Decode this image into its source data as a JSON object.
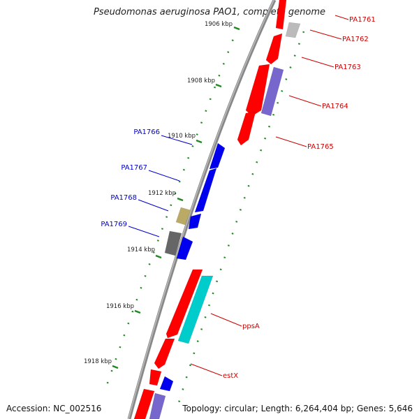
{
  "title": "Pseudomonas aeruginosa PAO1, complete genome",
  "footer": {
    "accession": "Accession: NC_002516",
    "summary": "Topology: circular; Length: 6,264,404 bp; Genes: 5,646"
  },
  "scale_ticks": [
    {
      "label": "1906 kbp"
    },
    {
      "label": "1908 kbp"
    },
    {
      "label": "1910 kbp"
    },
    {
      "label": "1912 kbp"
    },
    {
      "label": "1914 kbp"
    },
    {
      "label": "1916 kbp"
    },
    {
      "label": "1918 kbp"
    }
  ],
  "gene_labels_right": [
    {
      "label": "PA1761",
      "color": "#cc0000"
    },
    {
      "label": "PA1762",
      "color": "#cc0000"
    },
    {
      "label": "PA1763",
      "color": "#cc0000"
    },
    {
      "label": "PA1764",
      "color": "#cc0000"
    },
    {
      "label": "PA1765",
      "color": "#cc0000"
    },
    {
      "label": "ppsA",
      "color": "#cc0000"
    },
    {
      "label": "estX",
      "color": "#cc0000"
    }
  ],
  "gene_labels_left": [
    {
      "label": "PA1766",
      "color": "#0000cc"
    },
    {
      "label": "PA1767",
      "color": "#0000cc"
    },
    {
      "label": "PA1768",
      "color": "#0000cc"
    },
    {
      "label": "PA1769",
      "color": "#0000cc"
    }
  ],
  "colors": {
    "forward": "#ff0000",
    "reverse": "#0000ee",
    "rna_light": "#bbbbbb",
    "purple": "#7766cc",
    "cyan": "#00cccc",
    "olive": "#bbaa66",
    "dark": "#666666",
    "backbone": "#888888",
    "tick": "#228822"
  }
}
